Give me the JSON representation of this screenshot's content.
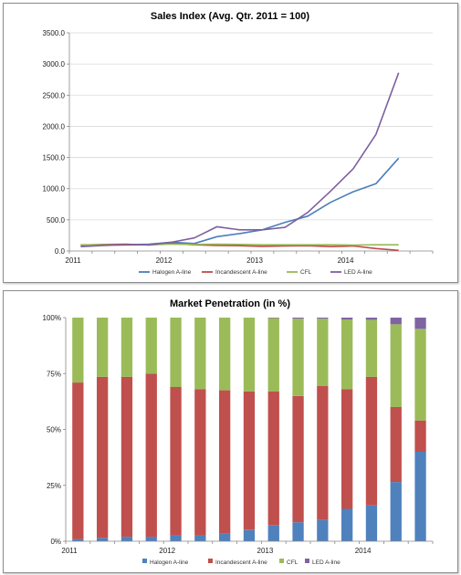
{
  "charts": [
    {
      "title": "Sales Index (Avg. Qtr. 2011 = 100)"
    },
    {
      "title": "Market Penetration (in %)"
    }
  ],
  "chart_data": [
    {
      "type": "line",
      "title": "Sales Index (Avg. Qtr. 2011 = 100)",
      "xlabel": "",
      "ylabel": "",
      "ylim": [
        0,
        3500
      ],
      "yticks": [
        "0.0",
        "500.0",
        "1000.0",
        "1500.0",
        "2000.0",
        "2500.0",
        "3000.0",
        "3500.0"
      ],
      "xtick_labels": [
        "2011",
        "2012",
        "2013",
        "2014"
      ],
      "grid": "horizontal",
      "legend": "bottom",
      "x": [
        "2011 Q1",
        "2011 Q2",
        "2011 Q3",
        "2011 Q4",
        "2012 Q1",
        "2012 Q2",
        "2012 Q3",
        "2012 Q4",
        "2013 Q1",
        "2013 Q2",
        "2013 Q3",
        "2013 Q4",
        "2014 Q1",
        "2014 Q2",
        "2014 Q3",
        "2014 Q4"
      ],
      "series": [
        {
          "name": "Halogen A-line",
          "color": "#4a7ebb",
          "values": [
            90,
            100,
            100,
            110,
            140,
            120,
            230,
            280,
            340,
            460,
            560,
            780,
            950,
            1080,
            1490,
            null
          ]
        },
        {
          "name": "Incandescent A-line",
          "color": "#be4b48",
          "values": [
            95,
            105,
            110,
            95,
            120,
            100,
            90,
            85,
            75,
            80,
            85,
            70,
            80,
            40,
            10,
            null
          ]
        },
        {
          "name": "CFL",
          "color": "#98b954",
          "values": [
            100,
            100,
            95,
            100,
            110,
            105,
            110,
            105,
            100,
            100,
            100,
            100,
            95,
            100,
            100,
            null
          ]
        },
        {
          "name": "LED A-line",
          "color": "#7d60a0",
          "values": [
            70,
            90,
            100,
            100,
            140,
            210,
            390,
            340,
            340,
            380,
            620,
            960,
            1320,
            1870,
            2860,
            null
          ]
        }
      ]
    },
    {
      "type": "bar",
      "stacked": true,
      "title": "Market Penetration (in %)",
      "ylim": [
        0,
        100
      ],
      "yticks": [
        "0%",
        "25%",
        "50%",
        "75%",
        "100%"
      ],
      "xtick_labels": [
        "2011",
        "2012",
        "2013",
        "2014"
      ],
      "legend": "bottom",
      "categories": [
        "2011 Q1",
        "2011 Q2",
        "2011 Q3",
        "2011 Q4",
        "2012 Q1",
        "2012 Q2",
        "2012 Q3",
        "2012 Q4",
        "2013 Q1",
        "2013 Q2",
        "2013 Q3",
        "2013 Q4",
        "2014 Q1",
        "2014 Q2",
        "2014 Q3"
      ],
      "series": [
        {
          "name": "Halogen A-line",
          "color": "#4f81bd",
          "values": [
            1,
            1.5,
            2,
            2,
            2.5,
            2.5,
            3.5,
            5,
            7,
            8.5,
            9.5,
            14.5,
            16,
            26.5,
            40
          ]
        },
        {
          "name": "Incandescent A-line",
          "color": "#c0504d",
          "values": [
            70,
            72,
            71.5,
            73,
            66.5,
            65.5,
            64,
            62,
            60,
            56.5,
            60,
            53.5,
            57.5,
            33.5,
            14
          ]
        },
        {
          "name": "CFL",
          "color": "#9bbb59",
          "values": [
            29,
            26.5,
            26.5,
            25,
            31,
            32,
            32.5,
            33,
            32.8,
            34.5,
            30,
            31.2,
            25.5,
            37,
            41
          ]
        },
        {
          "name": "LED A-line",
          "color": "#8064a2",
          "values": [
            0,
            0,
            0,
            0,
            0,
            0,
            0,
            0,
            0.2,
            0.5,
            0.5,
            0.8,
            1,
            3,
            5
          ]
        }
      ]
    }
  ]
}
